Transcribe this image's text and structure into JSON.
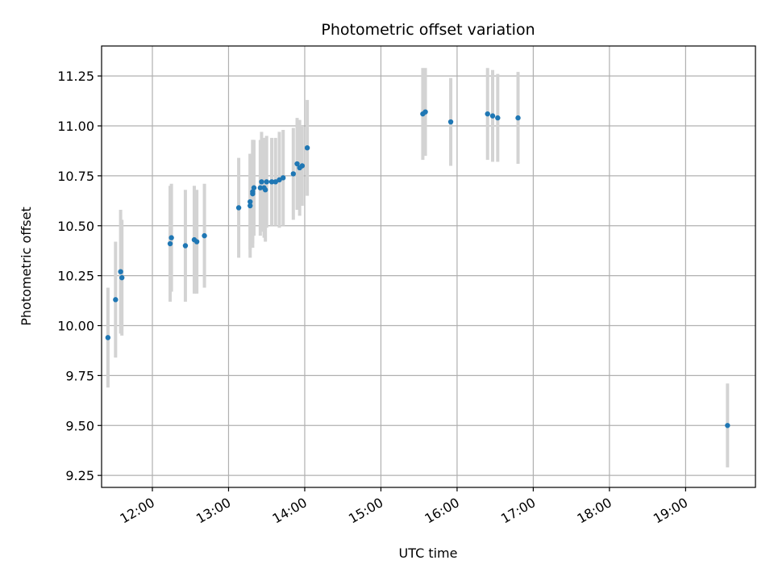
{
  "chart_data": {
    "type": "scatter",
    "title": "Photometric offset variation",
    "xlabel": "UTC time",
    "ylabel": "Photometric offset",
    "x_is_time": true,
    "xlim": [
      "11:20",
      "19:55"
    ],
    "ylim": [
      9.19,
      11.4
    ],
    "x_ticks": [
      "12:00",
      "13:00",
      "14:00",
      "15:00",
      "16:00",
      "17:00",
      "18:00",
      "19:00"
    ],
    "y_ticks": [
      9.25,
      9.5,
      9.75,
      10.0,
      10.25,
      10.5,
      10.75,
      11.0,
      11.25
    ],
    "y_tick_labels": [
      "9.25",
      "9.50",
      "9.75",
      "10.00",
      "10.25",
      "10.50",
      "10.75",
      "11.00",
      "11.25"
    ],
    "grid": true,
    "point_color": "#1f77b4",
    "errorbar_color": "#d3d3d3",
    "points": [
      {
        "x": "11:25",
        "y": 9.94,
        "err": 0.25
      },
      {
        "x": "11:31",
        "y": 10.13,
        "err": 0.29
      },
      {
        "x": "11:35",
        "y": 10.27,
        "err": 0.31
      },
      {
        "x": "11:36",
        "y": 10.24,
        "err": 0.29
      },
      {
        "x": "12:14",
        "y": 10.41,
        "err": 0.29
      },
      {
        "x": "12:15",
        "y": 10.44,
        "err": 0.27
      },
      {
        "x": "12:26",
        "y": 10.4,
        "err": 0.28
      },
      {
        "x": "12:33",
        "y": 10.43,
        "err": 0.27
      },
      {
        "x": "12:35",
        "y": 10.42,
        "err": 0.26
      },
      {
        "x": "12:41",
        "y": 10.45,
        "err": 0.26
      },
      {
        "x": "13:08",
        "y": 10.59,
        "err": 0.25
      },
      {
        "x": "13:17",
        "y": 10.6,
        "err": 0.26
      },
      {
        "x": "13:17",
        "y": 10.62,
        "err": 0.24
      },
      {
        "x": "13:19",
        "y": 10.66,
        "err": 0.27
      },
      {
        "x": "13:19",
        "y": 10.67,
        "err": 0.26
      },
      {
        "x": "13:20",
        "y": 10.69,
        "err": 0.24
      },
      {
        "x": "13:25",
        "y": 10.69,
        "err": 0.24
      },
      {
        "x": "13:26",
        "y": 10.72,
        "err": 0.25
      },
      {
        "x": "13:28",
        "y": 10.69,
        "err": 0.25
      },
      {
        "x": "13:29",
        "y": 10.68,
        "err": 0.26
      },
      {
        "x": "13:30",
        "y": 10.72,
        "err": 0.23
      },
      {
        "x": "13:34",
        "y": 10.72,
        "err": 0.22
      },
      {
        "x": "13:37",
        "y": 10.72,
        "err": 0.22
      },
      {
        "x": "13:40",
        "y": 10.73,
        "err": 0.24
      },
      {
        "x": "13:43",
        "y": 10.74,
        "err": 0.24
      },
      {
        "x": "13:51",
        "y": 10.76,
        "err": 0.23
      },
      {
        "x": "13:54",
        "y": 10.81,
        "err": 0.23
      },
      {
        "x": "13:56",
        "y": 10.79,
        "err": 0.24
      },
      {
        "x": "13:58",
        "y": 10.8,
        "err": 0.2
      },
      {
        "x": "14:02",
        "y": 10.89,
        "err": 0.24
      },
      {
        "x": "15:33",
        "y": 11.06,
        "err": 0.23
      },
      {
        "x": "15:35",
        "y": 11.07,
        "err": 0.22
      },
      {
        "x": "15:55",
        "y": 11.02,
        "err": 0.22
      },
      {
        "x": "16:24",
        "y": 11.06,
        "err": 0.23
      },
      {
        "x": "16:28",
        "y": 11.05,
        "err": 0.23
      },
      {
        "x": "16:32",
        "y": 11.04,
        "err": 0.22
      },
      {
        "x": "16:48",
        "y": 11.04,
        "err": 0.23
      },
      {
        "x": "19:33",
        "y": 9.5,
        "err": 0.21
      }
    ]
  }
}
